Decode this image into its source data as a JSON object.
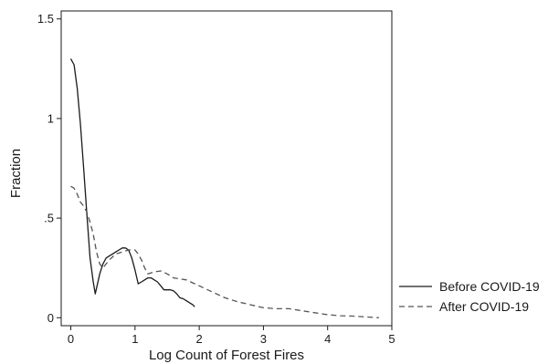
{
  "chart_data": {
    "type": "line",
    "xlabel": "Log Count of Forest Fires",
    "ylabel": "Fraction",
    "xlim": [
      -0.15,
      5.0
    ],
    "ylim": [
      -0.04,
      1.54
    ],
    "xticks": [
      0,
      1,
      2,
      3,
      4,
      5
    ],
    "xtick_labels": [
      "0",
      "1",
      "2",
      "3",
      "4",
      "5"
    ],
    "yticks": [
      0,
      0.5,
      1,
      1.5
    ],
    "ytick_labels": [
      "0",
      ".5",
      "1",
      "1.5"
    ],
    "grid": false,
    "legend_position": "right",
    "series": [
      {
        "name": "Before COVID-19",
        "style": "solid",
        "color": "#1a1a1a",
        "x": [
          0,
          0.05,
          0.1,
          0.15,
          0.2,
          0.25,
          0.3,
          0.35,
          0.38,
          0.45,
          0.5,
          0.55,
          0.6,
          0.65,
          0.7,
          0.75,
          0.8,
          0.85,
          0.9,
          0.95,
          1.0,
          1.05,
          1.1,
          1.15,
          1.2,
          1.25,
          1.3,
          1.35,
          1.4,
          1.45,
          1.5,
          1.55,
          1.6,
          1.65,
          1.7,
          1.75,
          1.8,
          1.85,
          1.9,
          1.93
        ],
        "y": [
          1.3,
          1.27,
          1.15,
          0.97,
          0.75,
          0.52,
          0.3,
          0.18,
          0.12,
          0.22,
          0.27,
          0.3,
          0.31,
          0.32,
          0.33,
          0.34,
          0.35,
          0.35,
          0.34,
          0.3,
          0.24,
          0.17,
          0.18,
          0.19,
          0.2,
          0.2,
          0.19,
          0.18,
          0.16,
          0.14,
          0.14,
          0.14,
          0.135,
          0.12,
          0.1,
          0.095,
          0.085,
          0.075,
          0.065,
          0.055
        ]
      },
      {
        "name": "After COVID-19",
        "style": "dashed",
        "color": "#555555",
        "x": [
          0,
          0.05,
          0.1,
          0.15,
          0.2,
          0.25,
          0.3,
          0.35,
          0.4,
          0.45,
          0.5,
          0.6,
          0.7,
          0.8,
          0.9,
          1.0,
          1.05,
          1.1,
          1.15,
          1.2,
          1.3,
          1.4,
          1.5,
          1.6,
          1.7,
          1.8,
          1.9,
          2.0,
          2.2,
          2.4,
          2.6,
          2.8,
          3.0,
          3.2,
          3.4,
          3.6,
          3.8,
          4.0,
          4.2,
          4.4,
          4.6,
          4.8
        ],
        "y": [
          0.66,
          0.65,
          0.62,
          0.58,
          0.56,
          0.53,
          0.48,
          0.42,
          0.33,
          0.27,
          0.25,
          0.29,
          0.32,
          0.33,
          0.34,
          0.34,
          0.32,
          0.29,
          0.25,
          0.22,
          0.23,
          0.235,
          0.22,
          0.2,
          0.195,
          0.19,
          0.175,
          0.16,
          0.13,
          0.1,
          0.08,
          0.065,
          0.05,
          0.045,
          0.045,
          0.035,
          0.025,
          0.015,
          0.01,
          0.008,
          0.004,
          0.0
        ]
      }
    ]
  }
}
